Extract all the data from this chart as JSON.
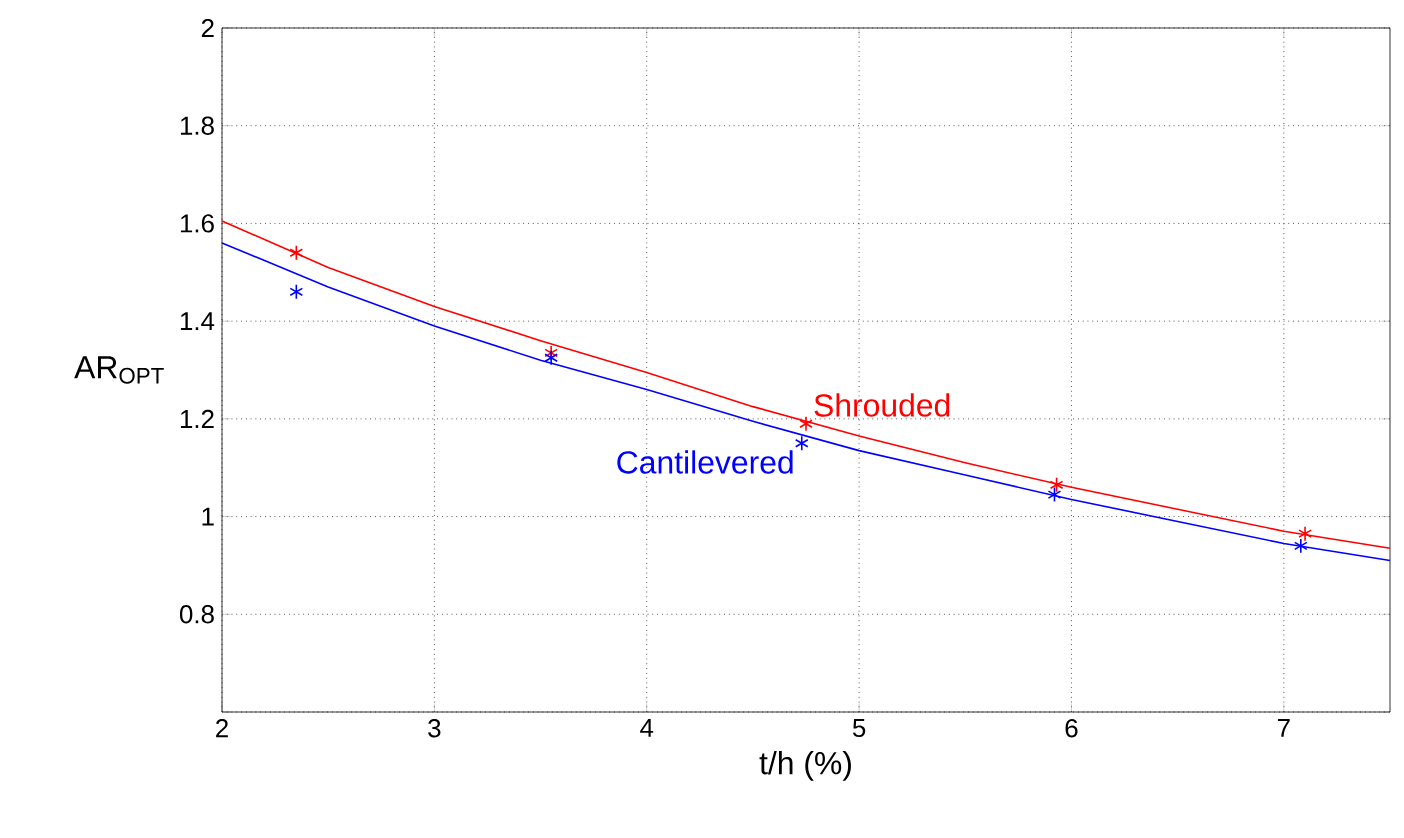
{
  "chart_data": {
    "type": "scatter",
    "xlabel": "t/h (%)",
    "ylabel": "AR$_{OPT}$",
    "xlim": [
      2,
      7.5
    ],
    "ylim": [
      0.6,
      2
    ],
    "xticks": [
      2,
      3,
      4,
      5,
      6,
      7
    ],
    "yticks": [
      {
        "value": 0.6,
        "label": null
      },
      0.8,
      1,
      1.2,
      1.4,
      1.6,
      1.8,
      2
    ],
    "grid": true,
    "series": [
      {
        "name": "Shrouded",
        "marker": "cross",
        "color": "#ff0000",
        "x": [
          2.35,
          3.55,
          4.75,
          5.93,
          7.1
        ],
        "values": [
          1.54,
          1.335,
          1.19,
          1.065,
          0.965
        ]
      },
      {
        "type": "line",
        "marker": "none",
        "color": "#ff0000",
        "x": [
          2,
          2.5,
          3,
          3.5,
          4,
          4.5,
          5,
          5.5,
          6,
          6.5,
          7,
          7.5
        ],
        "values": [
          1.605,
          1.51,
          1.43,
          1.36,
          1.295,
          1.225,
          1.165,
          1.11,
          1.06,
          1.015,
          0.97,
          0.935
        ]
      },
      {
        "name": "Cantilevered",
        "marker": "cross",
        "color": "#0000ff",
        "x": [
          2.35,
          3.55,
          4.73,
          5.92,
          7.08
        ],
        "values": [
          1.46,
          1.325,
          1.15,
          1.045,
          0.94
        ]
      },
      {
        "type": "line",
        "marker": "none",
        "color": "#0000ff",
        "x": [
          2,
          2.5,
          3,
          3.5,
          4,
          4.5,
          5,
          5.5,
          6,
          6.5,
          7,
          7.5
        ],
        "values": [
          1.56,
          1.47,
          1.39,
          1.32,
          1.26,
          1.195,
          1.135,
          1.085,
          1.035,
          0.99,
          0.945,
          0.91
        ]
      }
    ]
  }
}
